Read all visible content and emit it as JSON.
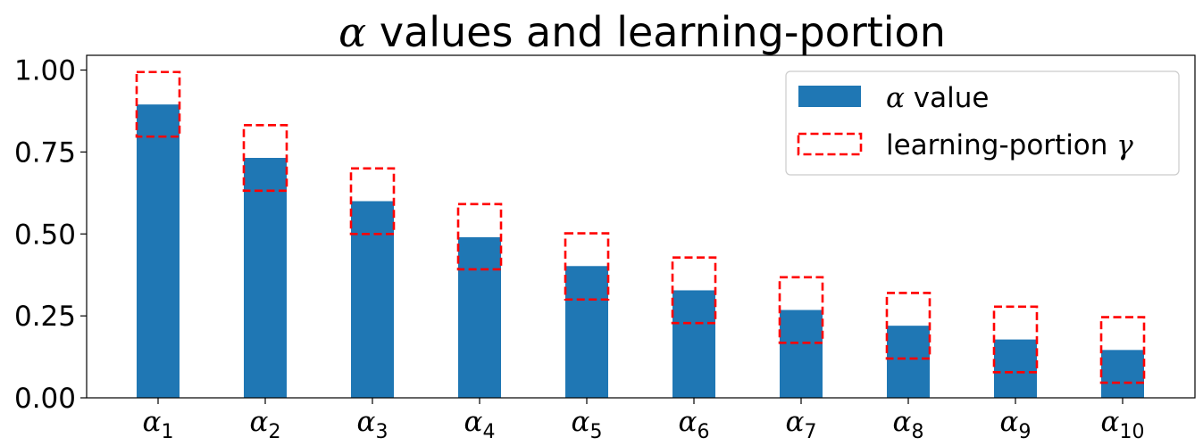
{
  "chart_data": {
    "type": "bar",
    "title": {
      "symbol": "α",
      "text": " values and learning-portion"
    },
    "categories": [
      {
        "symbol": "α",
        "sub": "1"
      },
      {
        "symbol": "α",
        "sub": "2"
      },
      {
        "symbol": "α",
        "sub": "3"
      },
      {
        "symbol": "α",
        "sub": "4"
      },
      {
        "symbol": "α",
        "sub": "5"
      },
      {
        "symbol": "α",
        "sub": "6"
      },
      {
        "symbol": "α",
        "sub": "7"
      },
      {
        "symbol": "α",
        "sub": "8"
      },
      {
        "symbol": "α",
        "sub": "9"
      },
      {
        "symbol": "α",
        "sub": "10"
      }
    ],
    "series": [
      {
        "name": "α value",
        "values": [
          0.895,
          0.732,
          0.6,
          0.49,
          0.402,
          0.328,
          0.268,
          0.22,
          0.178,
          0.146
        ],
        "color": "#1f77b4"
      },
      {
        "name": "learning-portion γ",
        "style": "dashed-outline",
        "color": "#ff0000",
        "ranges": [
          [
            0.797,
            0.994
          ],
          [
            0.632,
            0.832
          ],
          [
            0.5,
            0.7
          ],
          [
            0.392,
            0.591
          ],
          [
            0.3,
            0.502
          ],
          [
            0.228,
            0.428
          ],
          [
            0.168,
            0.368
          ],
          [
            0.12,
            0.32
          ],
          [
            0.078,
            0.278
          ],
          [
            0.046,
            0.246
          ]
        ]
      }
    ],
    "legend": {
      "placement": "top-right",
      "entries": [
        {
          "symbol": "α",
          "text": " value"
        },
        {
          "text": "learning-portion ",
          "symbol": "γ"
        }
      ]
    },
    "yticks": [
      "0.00",
      "0.25",
      "0.50",
      "0.75",
      "1.00"
    ],
    "ytick_values": [
      0,
      0.25,
      0.5,
      0.75,
      1.0
    ],
    "ylim": [
      0,
      1.045
    ],
    "grid": false
  }
}
